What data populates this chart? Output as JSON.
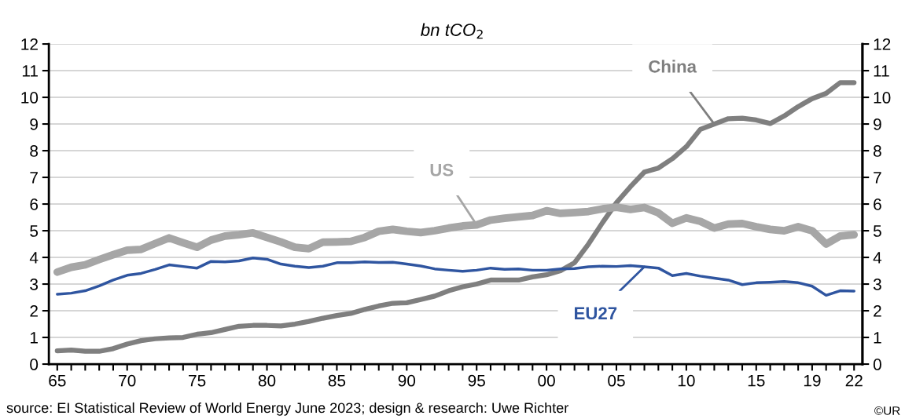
{
  "chart_data": {
    "type": "line",
    "subtitle": "bn tCO$_{2}$",
    "x": [
      1965,
      1966,
      1967,
      1968,
      1969,
      1970,
      1971,
      1972,
      1973,
      1974,
      1975,
      1976,
      1977,
      1978,
      1979,
      1980,
      1981,
      1982,
      1983,
      1984,
      1985,
      1986,
      1987,
      1988,
      1989,
      1990,
      1991,
      1992,
      1993,
      1994,
      1995,
      1996,
      1997,
      1998,
      1999,
      2000,
      2001,
      2002,
      2003,
      2004,
      2005,
      2006,
      2007,
      2008,
      2009,
      2010,
      2011,
      2012,
      2013,
      2014,
      2015,
      2016,
      2017,
      2018,
      2019,
      2020,
      2021,
      2022
    ],
    "series": [
      {
        "name": "US",
        "color": "#a6a6a6",
        "values": [
          3.45,
          3.63,
          3.72,
          3.92,
          4.1,
          4.27,
          4.3,
          4.52,
          4.73,
          4.55,
          4.38,
          4.65,
          4.8,
          4.85,
          4.92,
          4.75,
          4.58,
          4.38,
          4.33,
          4.57,
          4.58,
          4.6,
          4.75,
          4.98,
          5.05,
          4.98,
          4.93,
          5.0,
          5.1,
          5.18,
          5.22,
          5.4,
          5.47,
          5.52,
          5.57,
          5.75,
          5.65,
          5.68,
          5.72,
          5.82,
          5.88,
          5.8,
          5.87,
          5.67,
          5.28,
          5.48,
          5.35,
          5.1,
          5.25,
          5.27,
          5.15,
          5.05,
          5.0,
          5.15,
          5.0,
          4.5,
          4.8,
          4.85
        ]
      },
      {
        "name": "EU27",
        "color": "#2f55a0",
        "values": [
          2.62,
          2.66,
          2.75,
          2.93,
          3.15,
          3.33,
          3.4,
          3.55,
          3.72,
          3.66,
          3.6,
          3.85,
          3.83,
          3.87,
          3.98,
          3.93,
          3.75,
          3.67,
          3.62,
          3.67,
          3.8,
          3.8,
          3.83,
          3.81,
          3.82,
          3.75,
          3.68,
          3.57,
          3.52,
          3.48,
          3.52,
          3.6,
          3.55,
          3.57,
          3.52,
          3.52,
          3.57,
          3.58,
          3.65,
          3.67,
          3.66,
          3.69,
          3.65,
          3.6,
          3.32,
          3.4,
          3.3,
          3.22,
          3.15,
          2.98,
          3.05,
          3.07,
          3.1,
          3.05,
          2.92,
          2.58,
          2.75,
          2.74
        ]
      },
      {
        "name": "China",
        "color": "#7f7f7f",
        "values": [
          0.5,
          0.53,
          0.48,
          0.48,
          0.58,
          0.75,
          0.88,
          0.95,
          0.98,
          1.0,
          1.12,
          1.18,
          1.3,
          1.42,
          1.45,
          1.45,
          1.43,
          1.5,
          1.6,
          1.72,
          1.82,
          1.9,
          2.05,
          2.18,
          2.28,
          2.3,
          2.42,
          2.55,
          2.75,
          2.9,
          3.0,
          3.15,
          3.15,
          3.15,
          3.27,
          3.35,
          3.5,
          3.8,
          4.5,
          5.3,
          6.05,
          6.65,
          7.2,
          7.35,
          7.7,
          8.15,
          8.8,
          9.0,
          9.2,
          9.22,
          9.15,
          9.02,
          9.3,
          9.65,
          9.95,
          10.15,
          10.55,
          10.55
        ]
      }
    ],
    "xlim": [
      1964.4,
      2022.6
    ],
    "xticks": [
      {
        "value": 1965,
        "label": "65"
      },
      {
        "value": 1966,
        "label": null
      },
      {
        "value": 1967,
        "label": null
      },
      {
        "value": 1968,
        "label": null
      },
      {
        "value": 1969,
        "label": null
      },
      {
        "value": 1970,
        "label": "70"
      },
      {
        "value": 1971,
        "label": null
      },
      {
        "value": 1972,
        "label": null
      },
      {
        "value": 1973,
        "label": null
      },
      {
        "value": 1974,
        "label": null
      },
      {
        "value": 1975,
        "label": "75"
      },
      {
        "value": 1976,
        "label": null
      },
      {
        "value": 1977,
        "label": null
      },
      {
        "value": 1978,
        "label": null
      },
      {
        "value": 1979,
        "label": null
      },
      {
        "value": 1980,
        "label": "80"
      },
      {
        "value": 1981,
        "label": null
      },
      {
        "value": 1982,
        "label": null
      },
      {
        "value": 1983,
        "label": null
      },
      {
        "value": 1984,
        "label": null
      },
      {
        "value": 1985,
        "label": "85"
      },
      {
        "value": 1986,
        "label": null
      },
      {
        "value": 1987,
        "label": null
      },
      {
        "value": 1988,
        "label": null
      },
      {
        "value": 1989,
        "label": null
      },
      {
        "value": 1990,
        "label": "90"
      },
      {
        "value": 1991,
        "label": null
      },
      {
        "value": 1992,
        "label": null
      },
      {
        "value": 1993,
        "label": null
      },
      {
        "value": 1994,
        "label": null
      },
      {
        "value": 1995,
        "label": "95"
      },
      {
        "value": 1996,
        "label": null
      },
      {
        "value": 1997,
        "label": null
      },
      {
        "value": 1998,
        "label": null
      },
      {
        "value": 1999,
        "label": null
      },
      {
        "value": 2000,
        "label": "00"
      },
      {
        "value": 2001,
        "label": null
      },
      {
        "value": 2002,
        "label": null
      },
      {
        "value": 2003,
        "label": null
      },
      {
        "value": 2004,
        "label": null
      },
      {
        "value": 2005,
        "label": "05"
      },
      {
        "value": 2006,
        "label": null
      },
      {
        "value": 2007,
        "label": null
      },
      {
        "value": 2008,
        "label": null
      },
      {
        "value": 2009,
        "label": null
      },
      {
        "value": 2010,
        "label": "10"
      },
      {
        "value": 2011,
        "label": null
      },
      {
        "value": 2012,
        "label": null
      },
      {
        "value": 2013,
        "label": null
      },
      {
        "value": 2014,
        "label": null
      },
      {
        "value": 2015,
        "label": "15"
      },
      {
        "value": 2016,
        "label": null
      },
      {
        "value": 2017,
        "label": null
      },
      {
        "value": 2018,
        "label": null
      },
      {
        "value": 2019,
        "label": "19"
      },
      {
        "value": 2020,
        "label": null
      },
      {
        "value": 2021,
        "label": null
      },
      {
        "value": 2022,
        "label": "22"
      }
    ],
    "ylim": [
      0,
      12
    ],
    "yticks": [
      0,
      1,
      2,
      3,
      4,
      5,
      6,
      7,
      8,
      9,
      10,
      11,
      12
    ],
    "y2lim": [
      0,
      12
    ],
    "y2ticks": [
      0,
      1,
      2,
      3,
      4,
      5,
      6,
      7,
      8,
      9,
      10,
      11,
      12
    ],
    "grid": "y",
    "marker": "none",
    "line_style": "solid",
    "annotations": [
      "source: EI Statistical Review of World Energy June 2023; design & research: Uwe Richter",
      "©UR"
    ]
  }
}
